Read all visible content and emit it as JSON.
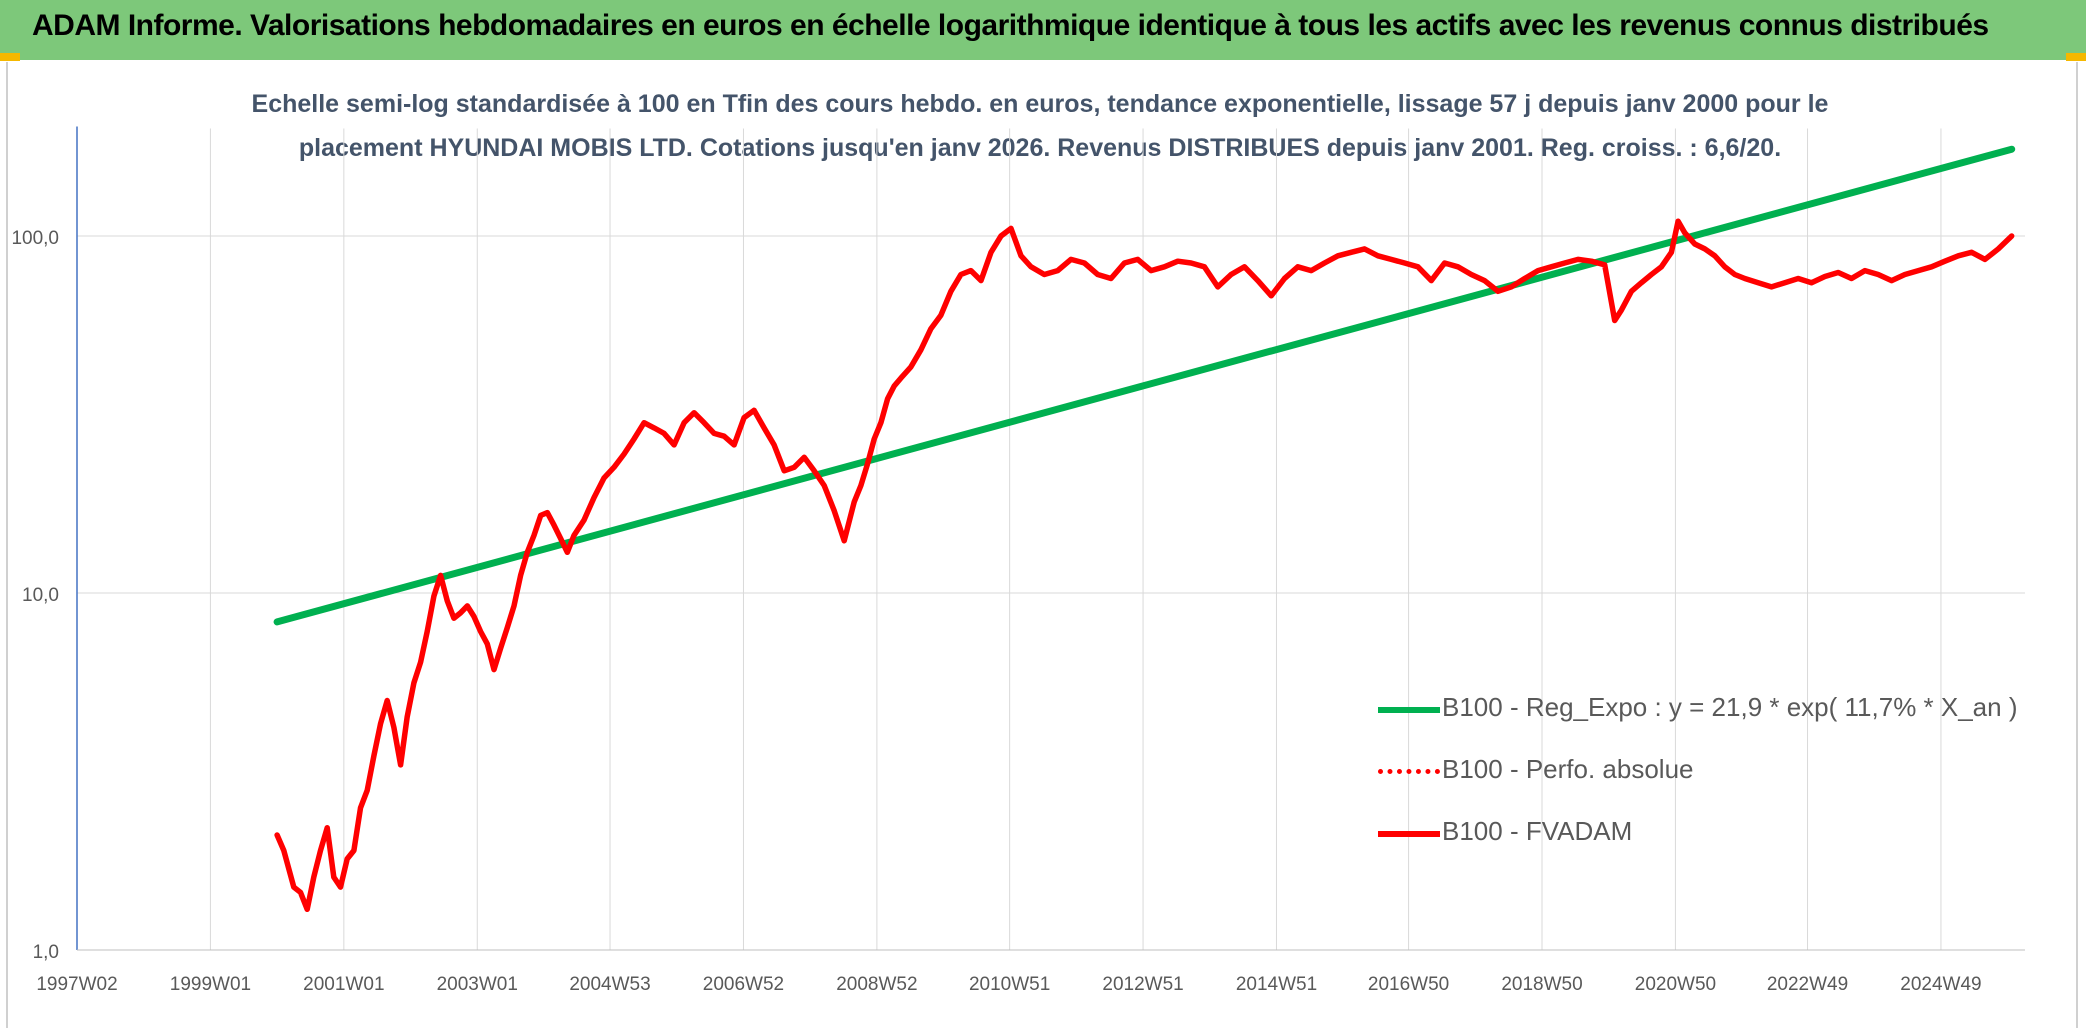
{
  "header": {
    "title": "ADAM Informe. Valorisations hebdomadaires en euros en échelle logarithmique identique à tous les actifs avec les revenus connus distribués"
  },
  "colors": {
    "header_bg": "#7dc87a",
    "corner_accent": "#f5b800",
    "trend_line": "#00b050",
    "fvadam_line": "#ff0000",
    "perf_line": "#ff0000",
    "title_text": "#44546a",
    "axis_text": "#595959",
    "gridline": "#d9d9d9"
  },
  "chart_data": {
    "type": "line",
    "title_line1": "Echelle semi-log standardisée à 100 en Tfin des cours hebdo. en euros, tendance exponentielle, lissage 57 j depuis janv 2000 pour le",
    "title_line2": "placement HYUNDAI MOBIS LTD. Cotations jusqu'en janv 2026. Revenus DISTRIBUES depuis janv 2001. Reg. croiss. : 6,6/20.",
    "y_scale": "log",
    "ylim": [
      1,
      200
    ],
    "y_ticks": [
      1,
      10,
      100
    ],
    "y_tick_labels": [
      "1,0",
      "10,0",
      "100,0"
    ],
    "xlim": [
      1997.0,
      2026.2
    ],
    "x_ticks": [
      1997.0,
      1999.0,
      2001.0,
      2003.0,
      2004.99,
      2006.99,
      2008.99,
      2010.98,
      2012.98,
      2014.98,
      2016.96,
      2018.96,
      2020.96,
      2022.94,
      2024.94
    ],
    "x_tick_labels": [
      "1997W02",
      "1999W01",
      "2001W01",
      "2003W01",
      "2004W53",
      "2006W52",
      "2008W52",
      "2010W51",
      "2012W51",
      "2014W51",
      "2016W50",
      "2018W50",
      "2020W50",
      "2022W49",
      "2024W49"
    ],
    "grid": true,
    "legend_position": "bottom-right",
    "series": [
      {
        "name": "B100 - Reg_Expo : y = 21,9 * exp( 11,7% *  X_an )",
        "style": "solid",
        "color": "#00b050",
        "x": [
          2000.0,
          2026.0
        ],
        "y": [
          8.3,
          175
        ]
      },
      {
        "name": "B100 - Perfo. absolue",
        "style": "dotted",
        "color": "#ff0000",
        "x": [],
        "y": []
      },
      {
        "name": "B100 - FVADAM",
        "style": "solid",
        "color": "#ff0000",
        "x": [
          2000.0,
          2000.1,
          2000.25,
          2000.35,
          2000.45,
          2000.55,
          2000.65,
          2000.75,
          2000.85,
          2000.95,
          2001.05,
          2001.15,
          2001.25,
          2001.35,
          2001.45,
          2001.55,
          2001.65,
          2001.75,
          2001.85,
          2001.95,
          2002.05,
          2002.15,
          2002.25,
          2002.35,
          2002.45,
          2002.55,
          2002.65,
          2002.75,
          2002.85,
          2002.95,
          2003.05,
          2003.15,
          2003.25,
          2003.35,
          2003.45,
          2003.55,
          2003.65,
          2003.75,
          2003.85,
          2003.95,
          2004.05,
          2004.15,
          2004.25,
          2004.35,
          2004.45,
          2004.6,
          2004.75,
          2004.9,
          2005.05,
          2005.2,
          2005.35,
          2005.5,
          2005.65,
          2005.8,
          2005.95,
          2006.1,
          2006.25,
          2006.4,
          2006.55,
          2006.7,
          2006.85,
          2007.0,
          2007.15,
          2007.3,
          2007.45,
          2007.6,
          2007.75,
          2007.9,
          2008.05,
          2008.2,
          2008.35,
          2008.5,
          2008.65,
          2008.75,
          2008.85,
          2008.95,
          2009.05,
          2009.15,
          2009.25,
          2009.35,
          2009.5,
          2009.65,
          2009.8,
          2009.95,
          2010.1,
          2010.25,
          2010.4,
          2010.55,
          2010.7,
          2010.85,
          2011.0,
          2011.15,
          2011.3,
          2011.5,
          2011.7,
          2011.9,
          2012.1,
          2012.3,
          2012.5,
          2012.7,
          2012.9,
          2013.1,
          2013.3,
          2013.5,
          2013.7,
          2013.9,
          2014.1,
          2014.3,
          2014.5,
          2014.7,
          2014.9,
          2015.1,
          2015.3,
          2015.5,
          2015.7,
          2015.9,
          2016.1,
          2016.3,
          2016.5,
          2016.7,
          2016.9,
          2017.1,
          2017.3,
          2017.5,
          2017.7,
          2017.9,
          2018.1,
          2018.3,
          2018.5,
          2018.7,
          2018.9,
          2019.1,
          2019.3,
          2019.5,
          2019.7,
          2019.9,
          2020.05,
          2020.15,
          2020.3,
          2020.45,
          2020.6,
          2020.75,
          2020.9,
          2021.0,
          2021.1,
          2021.25,
          2021.4,
          2021.55,
          2021.7,
          2021.85,
          2022.0,
          2022.2,
          2022.4,
          2022.6,
          2022.8,
          2023.0,
          2023.2,
          2023.4,
          2023.6,
          2023.8,
          2024.0,
          2024.2,
          2024.4,
          2024.6,
          2024.8,
          2025.0,
          2025.2,
          2025.4,
          2025.6,
          2025.8,
          2026.0
        ],
        "y": [
          2.1,
          1.9,
          1.5,
          1.45,
          1.3,
          1.6,
          1.9,
          2.2,
          1.6,
          1.5,
          1.8,
          1.9,
          2.5,
          2.8,
          3.5,
          4.3,
          5.0,
          4.2,
          3.3,
          4.5,
          5.6,
          6.4,
          7.8,
          9.8,
          11.2,
          9.5,
          8.5,
          8.8,
          9.2,
          8.6,
          7.8,
          7.2,
          6.1,
          7.0,
          8.0,
          9.2,
          11.2,
          13.0,
          14.5,
          16.5,
          16.8,
          15.5,
          14.2,
          13.0,
          14.5,
          16.0,
          18.5,
          21.0,
          22.5,
          24.5,
          27.0,
          30.0,
          29.0,
          28.0,
          26.0,
          30.0,
          32.0,
          30.0,
          28.0,
          27.5,
          26.0,
          31.0,
          32.5,
          29.0,
          26.0,
          22.0,
          22.5,
          24.0,
          22.0,
          20.0,
          17.0,
          14.0,
          18.0,
          20.0,
          23.0,
          27.0,
          30.0,
          35.0,
          38.0,
          40.0,
          43.0,
          48.0,
          55.0,
          60.0,
          70.0,
          78.0,
          80.0,
          75.0,
          90.0,
          100.0,
          105.0,
          88.0,
          82.0,
          78.0,
          80.0,
          86.0,
          84.0,
          78.0,
          76.0,
          84.0,
          86.0,
          80.0,
          82.0,
          85.0,
          84.0,
          82.0,
          72.0,
          78.0,
          82.0,
          75.0,
          68.0,
          76.0,
          82.0,
          80.0,
          84.0,
          88.0,
          90.0,
          92.0,
          88.0,
          86.0,
          84.0,
          82.0,
          75.0,
          84.0,
          82.0,
          78.0,
          75.0,
          70.0,
          72.0,
          76.0,
          80.0,
          82.0,
          84.0,
          86.0,
          85.0,
          83.0,
          58.0,
          62.0,
          70.0,
          74.0,
          78.0,
          82.0,
          90.0,
          110.0,
          102.0,
          95.0,
          92.0,
          88.0,
          82.0,
          78.0,
          76.0,
          74.0,
          72.0,
          74.0,
          76.0,
          74.0,
          77.0,
          79.0,
          76.0,
          80.0,
          78.0,
          75.0,
          78.0,
          80.0,
          82.0,
          85.0,
          88.0,
          90.0,
          86.0,
          92.0,
          100.0
        ]
      }
    ]
  }
}
